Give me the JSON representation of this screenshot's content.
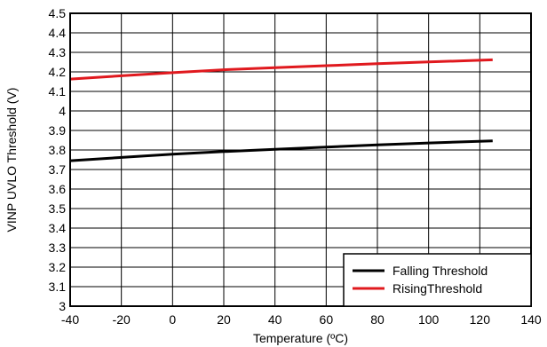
{
  "chart_data": {
    "type": "line",
    "xlabel": "Temperature (ºC)",
    "ylabel": "VINP UVLO Threshold (V)",
    "xlim": [
      -40,
      140
    ],
    "ylim": [
      3,
      4.5
    ],
    "xticks": [
      "-40",
      "-20",
      "0",
      "20",
      "40",
      "60",
      "80",
      "100",
      "120",
      "140"
    ],
    "yticks": [
      "3",
      "3.1",
      "3.2",
      "3.3",
      "3.4",
      "3.5",
      "3.6",
      "3.7",
      "3.8",
      "3.9",
      "4",
      "4.1",
      "4.2",
      "4.3",
      "4.4",
      "4.5"
    ],
    "grid": true,
    "legend_position": "bottom-right",
    "series": [
      {
        "name": "Falling Threshold",
        "color": "#000000",
        "x": [
          -40,
          -20,
          0,
          20,
          40,
          60,
          80,
          100,
          125
        ],
        "y": [
          3.745,
          3.762,
          3.778,
          3.792,
          3.803,
          3.815,
          3.826,
          3.836,
          3.847
        ]
      },
      {
        "name": "RisingThreshold",
        "color": "#e0191e",
        "x": [
          -40,
          -20,
          0,
          20,
          40,
          60,
          80,
          100,
          125
        ],
        "y": [
          4.163,
          4.18,
          4.196,
          4.211,
          4.222,
          4.232,
          4.242,
          4.251,
          4.262
        ]
      }
    ]
  }
}
